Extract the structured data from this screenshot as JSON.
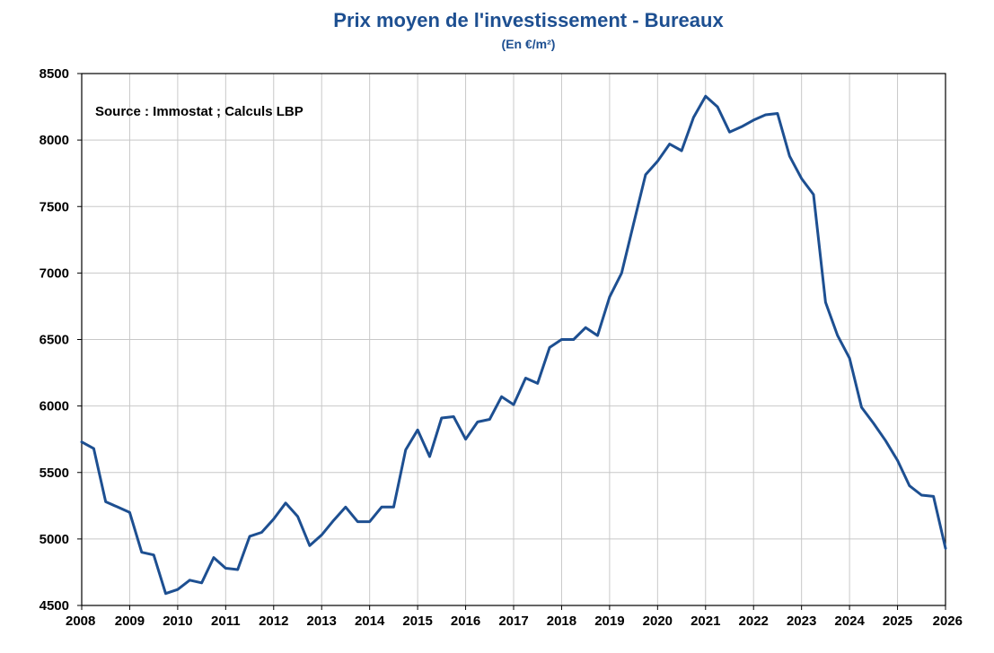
{
  "chart_data": {
    "type": "line",
    "title": "Prix moyen de l'investissement - Bureaux",
    "subtitle": "(En €/m²)",
    "annotation": "Source : Immostat ; Calculs LBP",
    "xlabel": "",
    "ylabel": "",
    "xlim": [
      2008,
      2026
    ],
    "ylim": [
      4500,
      8500
    ],
    "x_ticks": [
      "2008",
      "2009",
      "2010",
      "2011",
      "2012",
      "2013",
      "2014",
      "2015",
      "2016",
      "2017",
      "2018",
      "2019",
      "2020",
      "2021",
      "2022",
      "2023",
      "2024",
      "2025",
      "2026"
    ],
    "y_ticks": [
      "4500",
      "5000",
      "5500",
      "6000",
      "6500",
      "7000",
      "7500",
      "8000",
      "8500"
    ],
    "grid": true,
    "line_color": "#1d4f91",
    "series": [
      {
        "x": [
          2008.0,
          2008.25,
          2008.5,
          2008.75,
          2009.0,
          2009.25,
          2009.5,
          2009.75,
          2010.0,
          2010.25,
          2010.5,
          2010.75,
          2011.0,
          2011.25,
          2011.5,
          2011.75,
          2012.0,
          2012.25,
          2012.5,
          2012.75,
          2013.0,
          2013.25,
          2013.5,
          2013.75,
          2014.0,
          2014.25,
          2014.5,
          2014.75,
          2015.0,
          2015.25,
          2015.5,
          2015.75,
          2016.0,
          2016.25,
          2016.5,
          2016.75,
          2017.0,
          2017.25,
          2017.5,
          2017.75,
          2018.0,
          2018.25,
          2018.5,
          2018.75,
          2019.0,
          2019.25,
          2019.5,
          2019.75,
          2020.0,
          2020.25,
          2020.5,
          2020.75,
          2021.0,
          2021.25,
          2021.5,
          2021.75,
          2022.0,
          2022.25,
          2022.5,
          2022.75,
          2023.0,
          2023.25,
          2023.5,
          2023.75,
          2024.0,
          2024.25,
          2024.5,
          2024.75,
          2025.0,
          2025.25,
          2025.5,
          2025.75,
          2026.0
        ],
        "values": [
          5730,
          5680,
          5280,
          5240,
          5200,
          4900,
          4880,
          4590,
          4620,
          4690,
          4670,
          4860,
          4780,
          4770,
          5020,
          5050,
          5150,
          5270,
          5170,
          4950,
          5030,
          5140,
          5240,
          5130,
          5130,
          5240,
          5240,
          5670,
          5820,
          5620,
          5910,
          5920,
          5750,
          5880,
          5900,
          6070,
          6010,
          6210,
          6170,
          6440,
          6500,
          6500,
          6590,
          6530,
          6820,
          7000,
          7370,
          7740,
          7840,
          7970,
          7920,
          8170,
          8330,
          8250,
          8060,
          8100,
          8150,
          8190,
          8200,
          7880,
          7710,
          7590,
          6780,
          6530,
          6360,
          5990,
          5870,
          5740,
          5590,
          5400,
          5330,
          5320,
          4930
        ]
      }
    ]
  }
}
